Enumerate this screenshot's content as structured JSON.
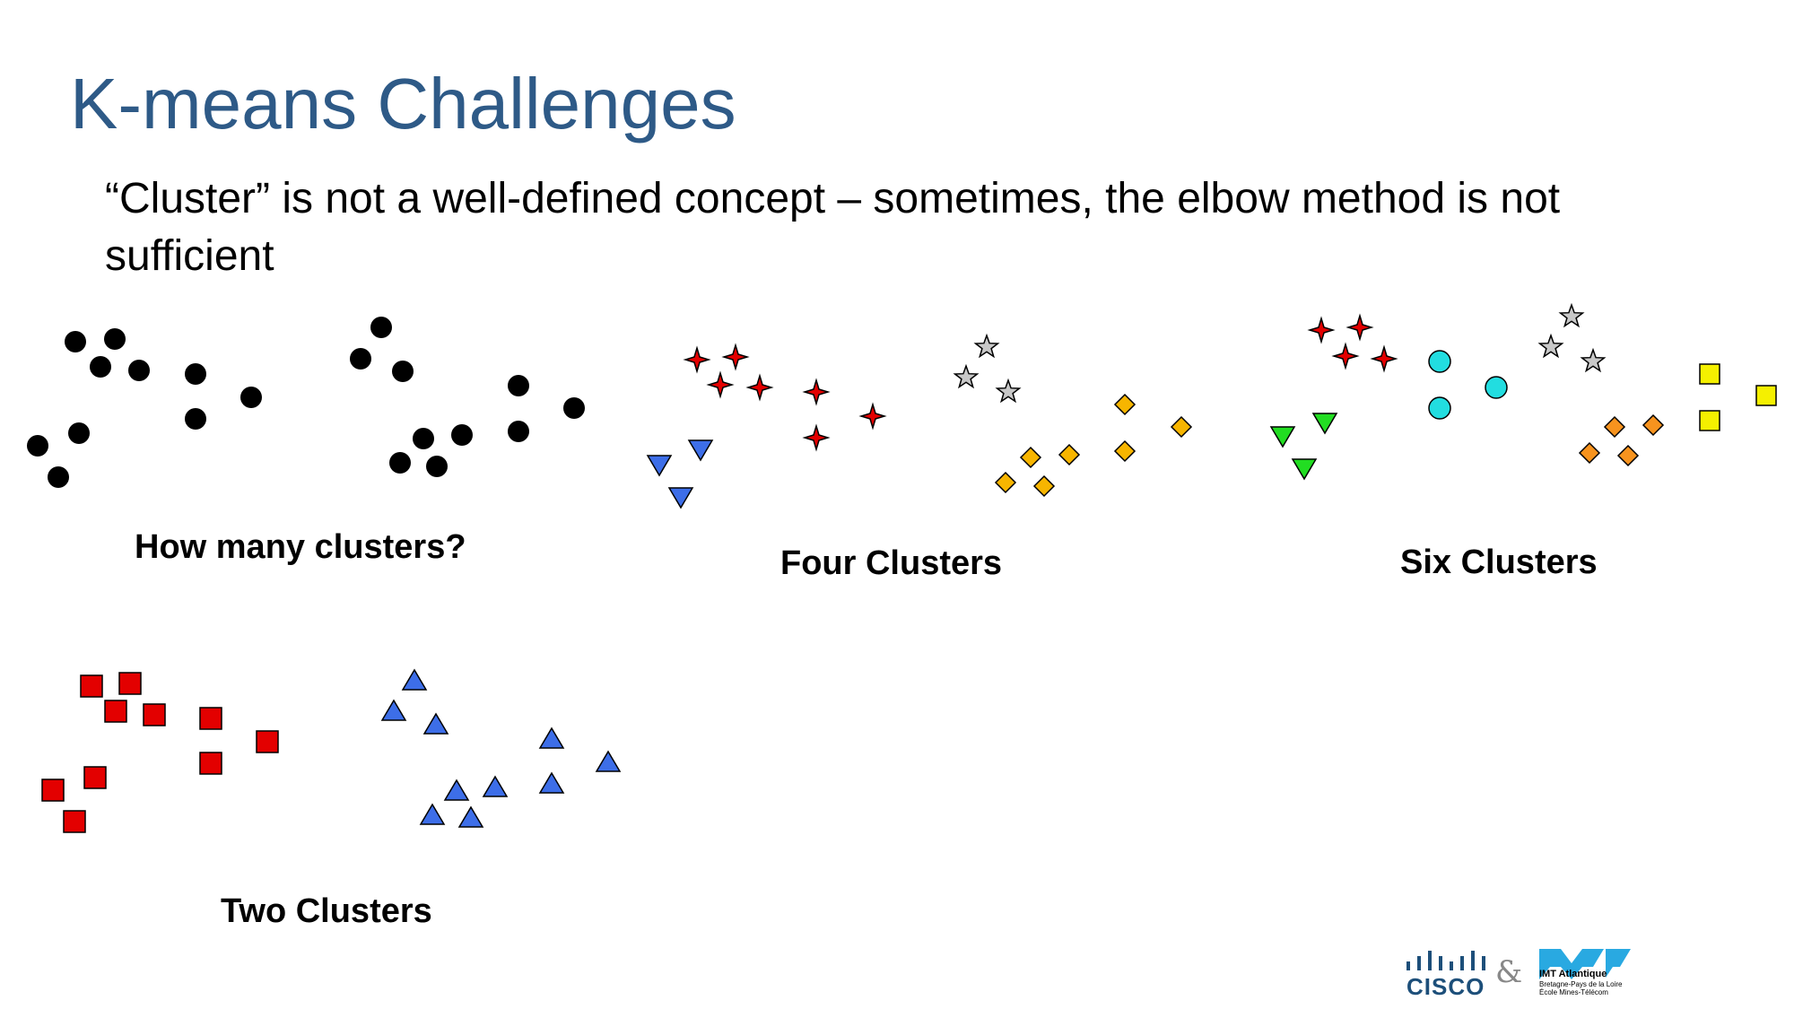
{
  "slide": {
    "title": "K-means Challenges",
    "body": "“Cluster” is not a well-defined concept – sometimes, the elbow method is not sufficient"
  },
  "panels": [
    {
      "id": "how",
      "caption": "How many clusters?"
    },
    {
      "id": "four",
      "caption": "Four Clusters"
    },
    {
      "id": "six",
      "caption": "Six Clusters"
    },
    {
      "id": "two",
      "caption": "Two Clusters"
    }
  ],
  "colors": {
    "title": "#2e5a87",
    "black": "#000000",
    "red": "#e30000",
    "blue": "#3d6ee8",
    "gray": "#c8c8c8",
    "orange_yellow": "#f7b500",
    "green": "#22dd22",
    "cyan": "#22dde0",
    "orange": "#f7931e",
    "yellow": "#f5f000",
    "outline": "#000000"
  },
  "logos": {
    "cisco": "CISCO",
    "ampersand": "&",
    "imt_name": "IMT Atlantique",
    "imt_sub_1": "Bretagne-Pays de la Loire",
    "imt_sub_2": "École Mines-Télécom"
  }
}
